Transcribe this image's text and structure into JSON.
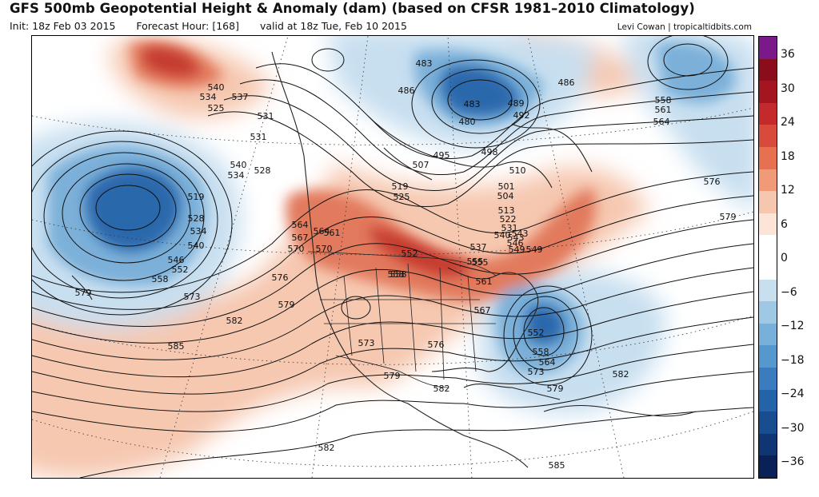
{
  "header": {
    "title": "GFS 500mb Geopotential Height & Anomaly (dam) (based on CFSR 1981–2010 Climatology)",
    "init": "Init: 18z Feb 03 2015",
    "forecast_hour": "Forecast Hour: [168]",
    "valid": "valid at 18z Tue, Feb 10 2015",
    "credit": "Levi Cowan | tropicaltidbits.com"
  },
  "colorbar": {
    "labels": [
      "36",
      "30",
      "24",
      "18",
      "12",
      "6",
      "0",
      "−6",
      "−12",
      "−18",
      "−24",
      "−30",
      "−36"
    ],
    "colors": [
      "#7a1a8a",
      "#8b0d1c",
      "#a5151f",
      "#c42a2c",
      "#d84a3b",
      "#e6704f",
      "#f19a78",
      "#f7c6ae",
      "#fce5d6",
      "#ffffff",
      "#ffffff",
      "#c8dff0",
      "#9fc8e5",
      "#78b0da",
      "#5697cd",
      "#3a7cbe",
      "#2463a8",
      "#184d90",
      "#0f3673",
      "#0a2157"
    ]
  },
  "map": {
    "anomaly_colors": {
      "strong_pos": "#c53a2e",
      "mod_pos": "#e27a5d",
      "weak_pos": "#f6c8b0",
      "weak_neg": "#c8dff0",
      "mod_neg": "#7bb0d9",
      "strong_neg": "#2b67ac"
    },
    "contour_labels": [
      {
        "text": "540"
      },
      {
        "text": "534"
      },
      {
        "text": "525"
      },
      {
        "text": "537"
      },
      {
        "text": "531"
      },
      {
        "text": "519"
      },
      {
        "text": "528"
      },
      {
        "text": "534"
      },
      {
        "text": "540"
      },
      {
        "text": "546"
      },
      {
        "text": "552"
      },
      {
        "text": "558"
      },
      {
        "text": "579"
      },
      {
        "text": "573"
      },
      {
        "text": "585"
      },
      {
        "text": "582"
      },
      {
        "text": "579"
      },
      {
        "text": "576"
      },
      {
        "text": "570"
      },
      {
        "text": "567"
      },
      {
        "text": "564"
      },
      {
        "text": "561"
      },
      {
        "text": "558"
      },
      {
        "text": "555"
      },
      {
        "text": "549"
      },
      {
        "text": "543"
      },
      {
        "text": "537"
      },
      {
        "text": "531"
      },
      {
        "text": "540"
      },
      {
        "text": "534"
      },
      {
        "text": "528"
      },
      {
        "text": "519"
      },
      {
        "text": "525"
      },
      {
        "text": "507"
      },
      {
        "text": "495"
      },
      {
        "text": "498"
      },
      {
        "text": "501"
      },
      {
        "text": "504"
      },
      {
        "text": "510"
      },
      {
        "text": "513"
      },
      {
        "text": "522"
      },
      {
        "text": "531"
      },
      {
        "text": "540"
      },
      {
        "text": "543"
      },
      {
        "text": "546"
      },
      {
        "text": "549"
      },
      {
        "text": "552"
      },
      {
        "text": "558"
      },
      {
        "text": "564"
      },
      {
        "text": "570"
      },
      {
        "text": "567"
      },
      {
        "text": "561"
      },
      {
        "text": "555"
      },
      {
        "text": "576"
      },
      {
        "text": "573"
      },
      {
        "text": "579"
      },
      {
        "text": "582"
      },
      {
        "text": "552"
      },
      {
        "text": "558"
      },
      {
        "text": "564"
      },
      {
        "text": "573"
      },
      {
        "text": "579"
      },
      {
        "text": "582"
      },
      {
        "text": "585"
      },
      {
        "text": "582"
      },
      {
        "text": "480"
      },
      {
        "text": "483"
      },
      {
        "text": "486"
      },
      {
        "text": "489"
      },
      {
        "text": "492"
      },
      {
        "text": "486"
      },
      {
        "text": "483"
      },
      {
        "text": "558"
      },
      {
        "text": "561"
      },
      {
        "text": "564"
      },
      {
        "text": "576"
      },
      {
        "text": "579"
      }
    ]
  }
}
